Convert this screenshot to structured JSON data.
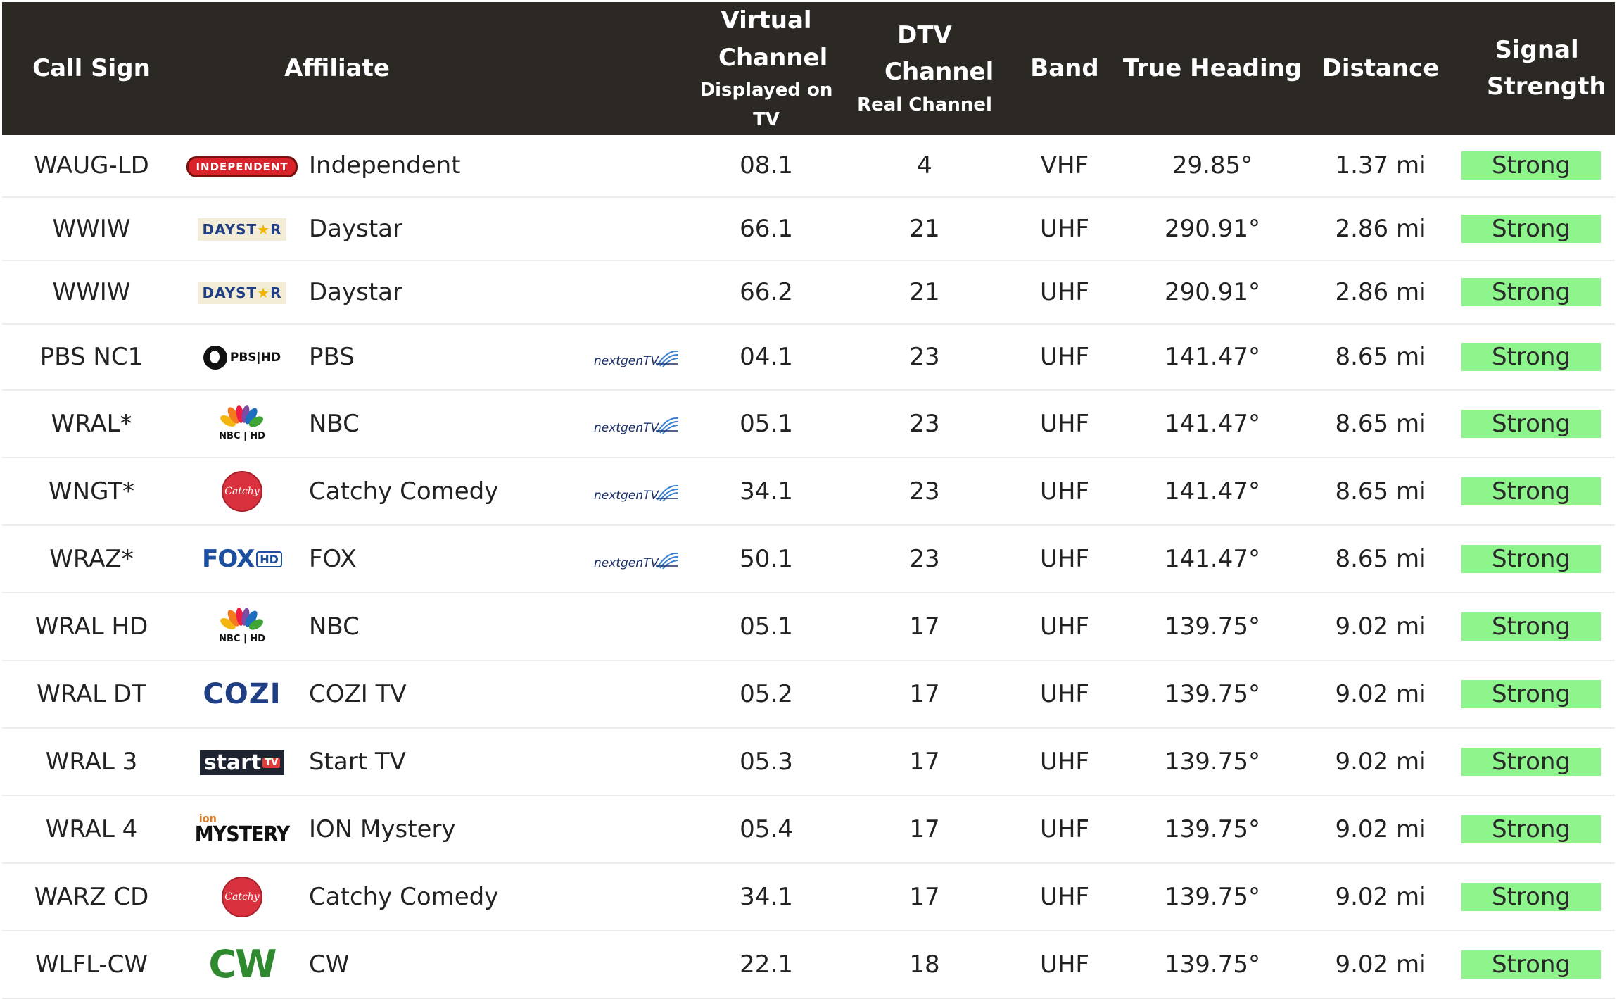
{
  "headers": {
    "call_sign": "Call Sign",
    "affiliate": "Affiliate",
    "virtual_channel": "Virtual Channel",
    "virtual_channel_sub": "Displayed on TV",
    "dtv_channel": "DTV Channel",
    "dtv_channel_sub": "Real Channel",
    "band": "Band",
    "true_heading": "True Heading",
    "distance": "Distance",
    "signal_strength": "Signal Strength"
  },
  "colors": {
    "header_bg": "#2c2925",
    "strong_bg": "#8df58c"
  },
  "nextgen_label": "nextgenTV",
  "rows": [
    {
      "call_sign": "WAUG-LD",
      "logo": "independent-logo",
      "logo_text": "INDEPENDENT",
      "affiliate": "Independent",
      "nextgen": false,
      "virtual": "08.1",
      "dtv": "4",
      "band": "VHF",
      "heading": "29.85°",
      "distance": "1.37 mi",
      "signal": "Strong"
    },
    {
      "call_sign": "WWIW",
      "logo": "daystar-logo",
      "logo_text": "DAYSTAR",
      "affiliate": "Daystar",
      "nextgen": false,
      "virtual": "66.1",
      "dtv": "21",
      "band": "UHF",
      "heading": "290.91°",
      "distance": "2.86 mi",
      "signal": "Strong"
    },
    {
      "call_sign": "WWIW",
      "logo": "daystar-logo",
      "logo_text": "DAYSTAR",
      "affiliate": "Daystar",
      "nextgen": false,
      "virtual": "66.2",
      "dtv": "21",
      "band": "UHF",
      "heading": "290.91°",
      "distance": "2.86 mi",
      "signal": "Strong"
    },
    {
      "call_sign": "PBS NC1",
      "logo": "pbs-logo",
      "logo_text": "PBS HD",
      "affiliate": "PBS",
      "nextgen": true,
      "virtual": "04.1",
      "dtv": "23",
      "band": "UHF",
      "heading": "141.47°",
      "distance": "8.65 mi",
      "signal": "Strong"
    },
    {
      "call_sign": "WRAL*",
      "logo": "nbc-logo",
      "logo_text": "NBC HD",
      "affiliate": "NBC",
      "nextgen": true,
      "virtual": "05.1",
      "dtv": "23",
      "band": "UHF",
      "heading": "141.47°",
      "distance": "8.65 mi",
      "signal": "Strong"
    },
    {
      "call_sign": "WNGT*",
      "logo": "catchy-comedy-logo",
      "logo_text": "Catchy",
      "affiliate": "Catchy Comedy",
      "nextgen": true,
      "virtual": "34.1",
      "dtv": "23",
      "band": "UHF",
      "heading": "141.47°",
      "distance": "8.65 mi",
      "signal": "Strong"
    },
    {
      "call_sign": "WRAZ*",
      "logo": "fox-logo",
      "logo_text": "FOX",
      "affiliate": "FOX",
      "nextgen": true,
      "virtual": "50.1",
      "dtv": "23",
      "band": "UHF",
      "heading": "141.47°",
      "distance": "8.65 mi",
      "signal": "Strong"
    },
    {
      "call_sign": "WRAL HD",
      "logo": "nbc-logo",
      "logo_text": "NBC HD",
      "affiliate": "NBC",
      "nextgen": false,
      "virtual": "05.1",
      "dtv": "17",
      "band": "UHF",
      "heading": "139.75°",
      "distance": "9.02 mi",
      "signal": "Strong"
    },
    {
      "call_sign": "WRAL DT",
      "logo": "cozi-logo",
      "logo_text": "COZI",
      "affiliate": "COZI TV",
      "nextgen": false,
      "virtual": "05.2",
      "dtv": "17",
      "band": "UHF",
      "heading": "139.75°",
      "distance": "9.02 mi",
      "signal": "Strong"
    },
    {
      "call_sign": "WRAL 3",
      "logo": "start-tv-logo",
      "logo_text": "start",
      "affiliate": "Start TV",
      "nextgen": false,
      "virtual": "05.3",
      "dtv": "17",
      "band": "UHF",
      "heading": "139.75°",
      "distance": "9.02 mi",
      "signal": "Strong"
    },
    {
      "call_sign": "WRAL 4",
      "logo": "ion-mystery-logo",
      "logo_text": "MYSTERY",
      "affiliate": "ION Mystery",
      "nextgen": false,
      "virtual": "05.4",
      "dtv": "17",
      "band": "UHF",
      "heading": "139.75°",
      "distance": "9.02 mi",
      "signal": "Strong"
    },
    {
      "call_sign": "WARZ CD",
      "logo": "catchy-comedy-logo",
      "logo_text": "Catchy",
      "affiliate": "Catchy Comedy",
      "nextgen": false,
      "virtual": "34.1",
      "dtv": "17",
      "band": "UHF",
      "heading": "139.75°",
      "distance": "9.02 mi",
      "signal": "Strong"
    },
    {
      "call_sign": "WLFL-CW",
      "logo": "cw-logo",
      "logo_text": "CW",
      "affiliate": "CW",
      "nextgen": false,
      "virtual": "22.1",
      "dtv": "18",
      "band": "UHF",
      "heading": "139.75°",
      "distance": "9.02 mi",
      "signal": "Strong"
    }
  ]
}
